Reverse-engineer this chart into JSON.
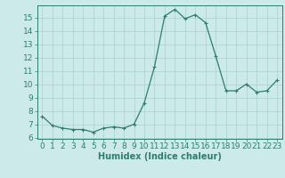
{
  "x": [
    0,
    1,
    2,
    3,
    4,
    5,
    6,
    7,
    8,
    9,
    10,
    11,
    12,
    13,
    14,
    15,
    16,
    17,
    18,
    19,
    20,
    21,
    22,
    23
  ],
  "y": [
    7.6,
    6.9,
    6.7,
    6.6,
    6.6,
    6.4,
    6.7,
    6.8,
    6.7,
    7.0,
    8.6,
    11.3,
    15.1,
    15.6,
    14.9,
    15.2,
    14.6,
    12.1,
    9.5,
    9.5,
    10.0,
    9.4,
    9.5,
    10.3
  ],
  "line_color": "#2e7d6e",
  "marker": "+",
  "marker_color": "#2e7d6e",
  "bg_color": "#cdeaea",
  "grid_color": "#aacfcf",
  "xlabel": "Humidex (Indice chaleur)",
  "xlim": [
    -0.5,
    23.5
  ],
  "ylim": [
    5.9,
    15.9
  ],
  "yticks": [
    6,
    7,
    8,
    9,
    10,
    11,
    12,
    13,
    14,
    15
  ],
  "xticks": [
    0,
    1,
    2,
    3,
    4,
    5,
    6,
    7,
    8,
    9,
    10,
    11,
    12,
    13,
    14,
    15,
    16,
    17,
    18,
    19,
    20,
    21,
    22,
    23
  ],
  "tick_color": "#2e7d6e",
  "label_color": "#2e7d6e",
  "font_size_axis": 6.5,
  "font_size_label": 7.0,
  "linewidth": 0.9,
  "markersize": 3.5
}
